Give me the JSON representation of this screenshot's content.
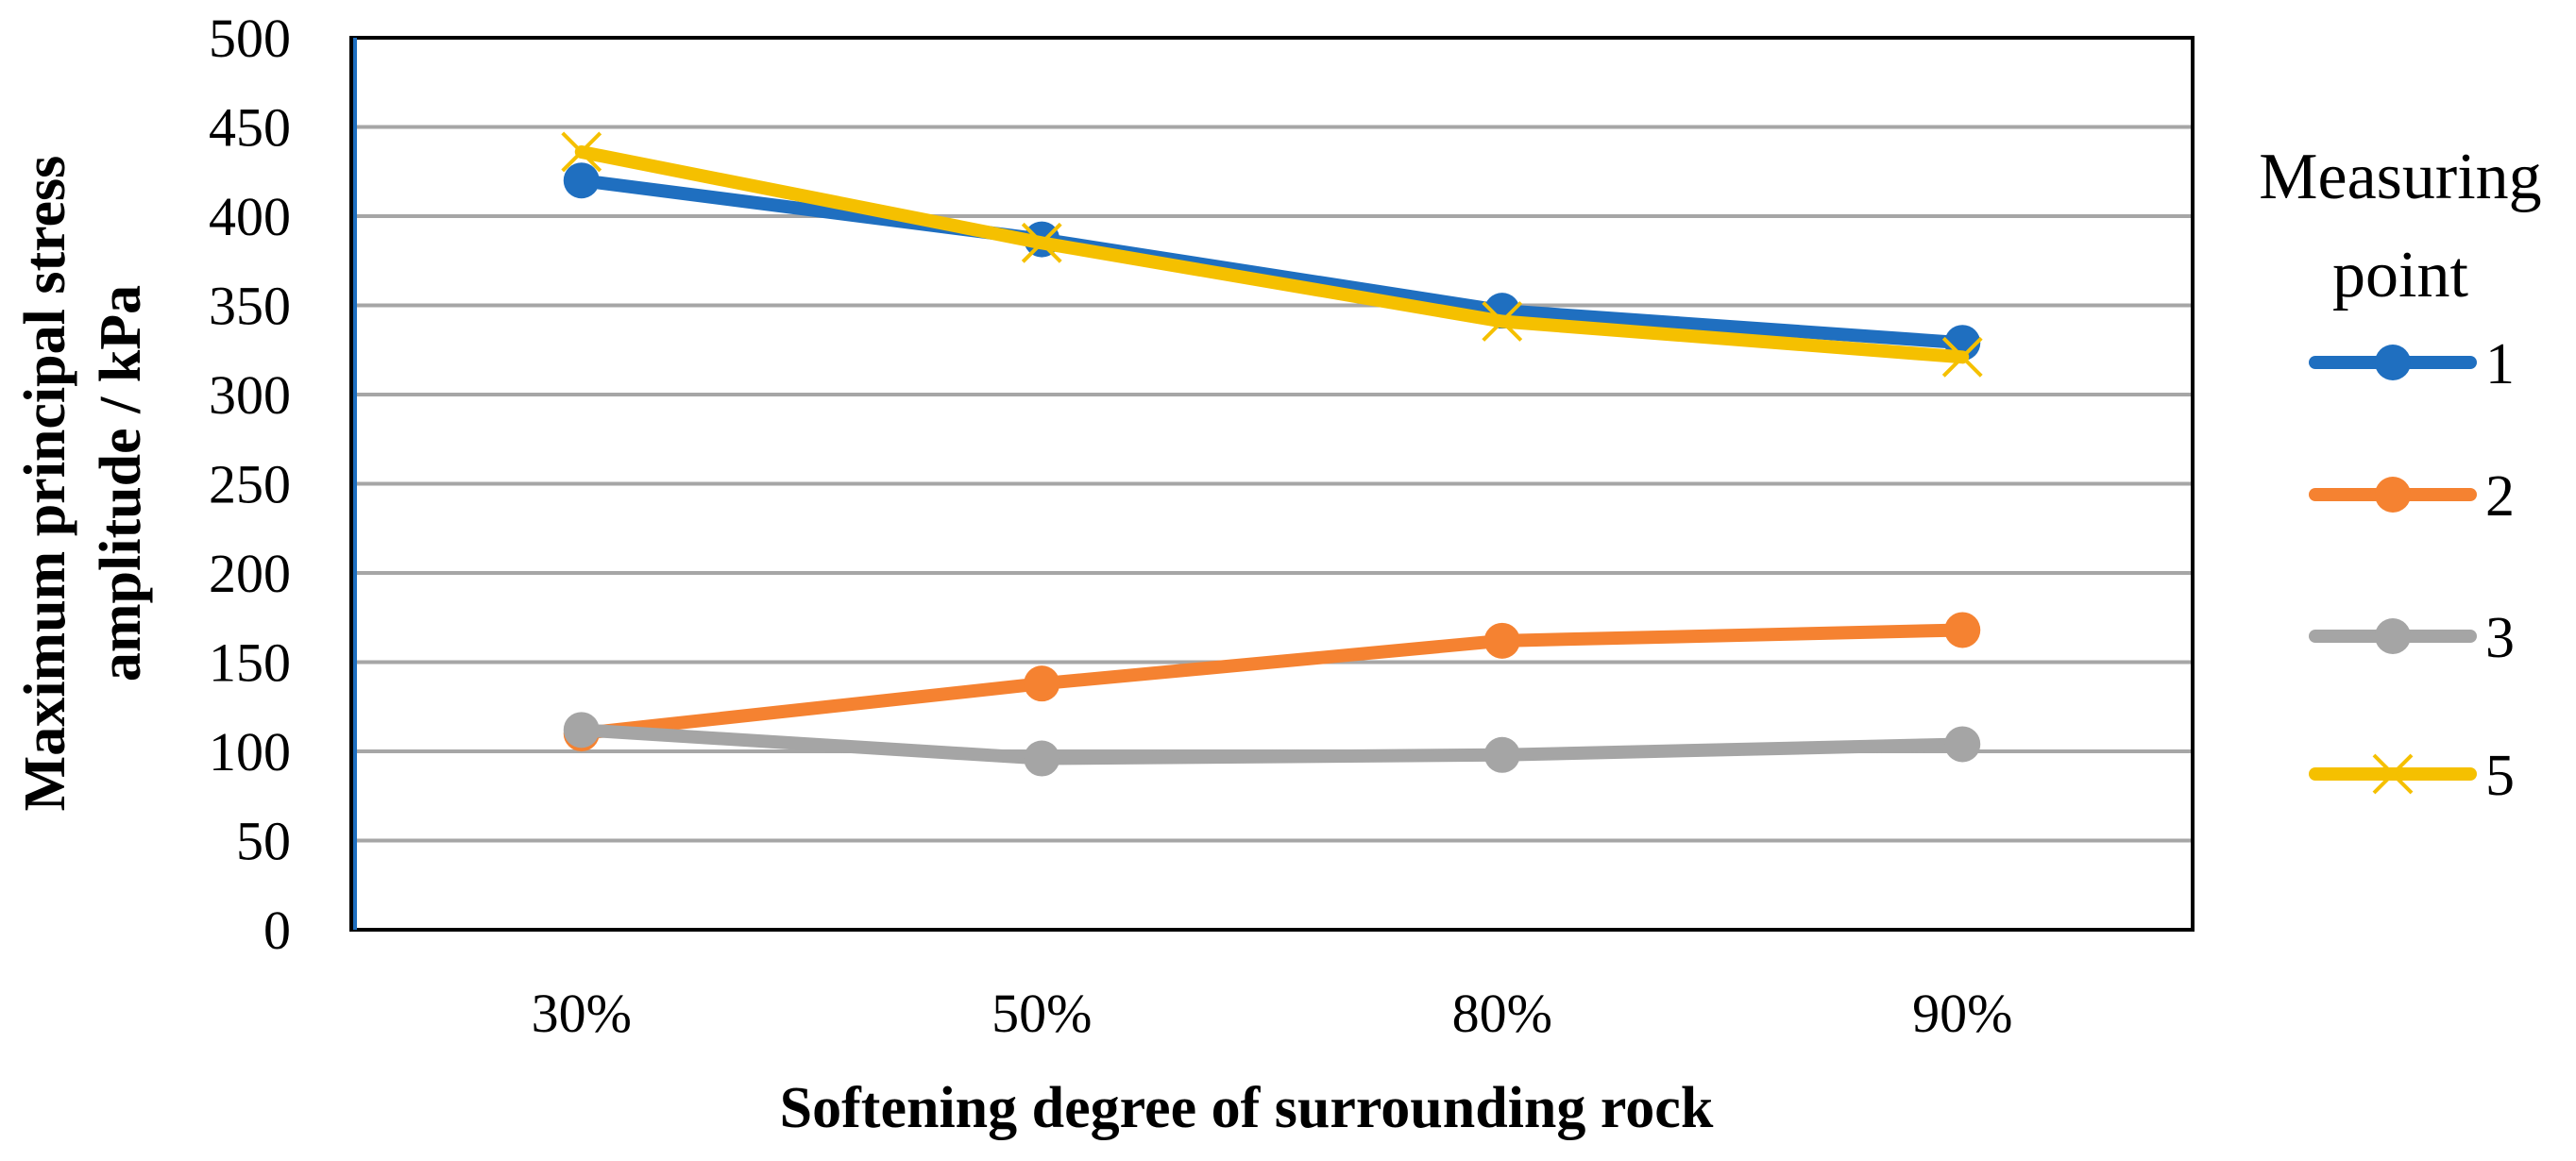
{
  "chart_data": {
    "type": "line",
    "title": "",
    "xlabel": "Softening degree of surrounding rock",
    "ylabel_lines": [
      "Maximum principal stress",
      "amplitude /  kPa"
    ],
    "categories": [
      "30%",
      "50%",
      "80%",
      "90%"
    ],
    "ylim": [
      0,
      500
    ],
    "yticks": [
      0,
      50,
      100,
      150,
      200,
      250,
      300,
      350,
      400,
      450,
      500
    ],
    "grid": true,
    "legend": {
      "title_lines": [
        "Measuring",
        "point"
      ],
      "placement": "right"
    },
    "series": [
      {
        "name": "1",
        "color": "#1f6fc0",
        "marker": "circle",
        "values": [
          420,
          387,
          347,
          329
        ]
      },
      {
        "name": "2",
        "color": "#f58231",
        "marker": "circle",
        "values": [
          110,
          138,
          162,
          168
        ]
      },
      {
        "name": "3",
        "color": "#a5a5a5",
        "marker": "circle",
        "values": [
          112,
          96,
          98,
          104
        ]
      },
      {
        "name": "5",
        "color": "#f5c000",
        "marker": "x",
        "values": [
          436,
          385,
          341,
          321
        ]
      }
    ]
  }
}
